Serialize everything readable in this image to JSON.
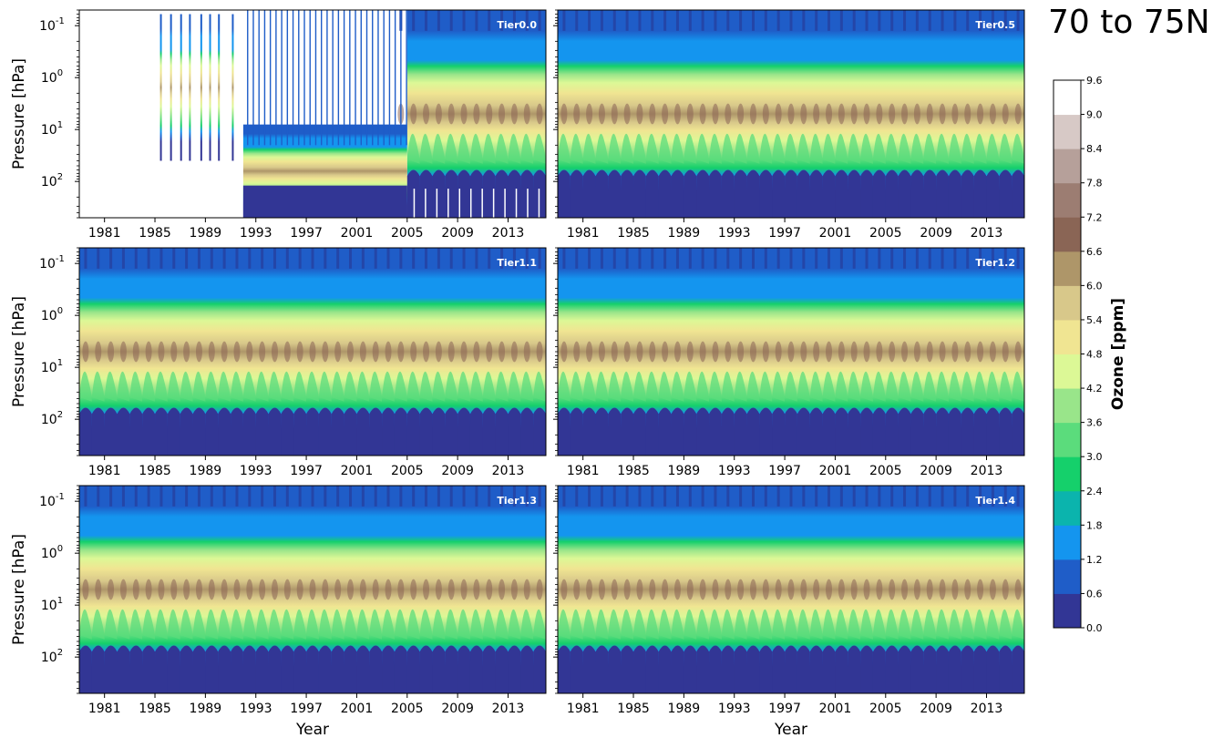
{
  "figure": {
    "title": "70 to 75N"
  },
  "colorbar": {
    "label": "Ozone [ppm]",
    "ticks": [
      "0.0",
      "0.6",
      "1.2",
      "1.8",
      "2.4",
      "3.0",
      "3.6",
      "4.2",
      "4.8",
      "5.4",
      "6.0",
      "6.6",
      "7.2",
      "7.8",
      "8.4",
      "9.0",
      "9.6"
    ],
    "colors": [
      "#323695",
      "#1f5dc8",
      "#1495ef",
      "#0bb4ad",
      "#15d06b",
      "#5bdc7c",
      "#99e58a",
      "#dcf896",
      "#f0e592",
      "#d8c88a",
      "#ae9669",
      "#8a6555",
      "#9c7d72",
      "#b6a09a",
      "#d7c9c6",
      "#ffffff"
    ]
  },
  "chart_data": [
    {
      "type": "heatmap",
      "panel_label": "Tier0.0",
      "ylabel": "Pressure [hPa]",
      "xlabel": "",
      "x_ticks": [
        "1981",
        "1985",
        "1989",
        "1993",
        "1997",
        "2001",
        "2005",
        "2009",
        "2013"
      ],
      "y_ticks": [
        "10^-1",
        "10^0",
        "10^1",
        "10^2"
      ],
      "y_scale": "log",
      "y_inverted": true,
      "x_range": [
        1979,
        2016
      ],
      "y_range": [
        0.05,
        500
      ],
      "value_range": [
        0,
        9.6
      ],
      "coverage": "sparse profiles 1985-1992, partial 1992-2005, complete 2005-2016"
    },
    {
      "type": "heatmap",
      "panel_label": "Tier0.5",
      "ylabel": "",
      "xlabel": "",
      "x_ticks": [
        "1981",
        "1985",
        "1989",
        "1993",
        "1997",
        "2001",
        "2005",
        "2009",
        "2013"
      ],
      "y_scale": "log",
      "y_inverted": true,
      "x_range": [
        1979,
        2016
      ],
      "y_range": [
        0.05,
        500
      ],
      "value_range": [
        0,
        9.6
      ]
    },
    {
      "type": "heatmap",
      "panel_label": "Tier1.1",
      "ylabel": "Pressure [hPa]",
      "xlabel": "",
      "x_ticks": [
        "1981",
        "1985",
        "1989",
        "1993",
        "1997",
        "2001",
        "2005",
        "2009",
        "2013"
      ],
      "y_ticks": [
        "10^-1",
        "10^0",
        "10^1",
        "10^2"
      ],
      "y_scale": "log",
      "y_inverted": true,
      "x_range": [
        1979,
        2016
      ],
      "y_range": [
        0.05,
        500
      ],
      "value_range": [
        0,
        9.6
      ]
    },
    {
      "type": "heatmap",
      "panel_label": "Tier1.2",
      "ylabel": "",
      "xlabel": "",
      "x_ticks": [
        "1981",
        "1985",
        "1989",
        "1993",
        "1997",
        "2001",
        "2005",
        "2009",
        "2013"
      ],
      "y_scale": "log",
      "y_inverted": true,
      "x_range": [
        1979,
        2016
      ],
      "y_range": [
        0.05,
        500
      ],
      "value_range": [
        0,
        9.6
      ]
    },
    {
      "type": "heatmap",
      "panel_label": "Tier1.3",
      "ylabel": "Pressure [hPa]",
      "xlabel": "Year",
      "x_ticks": [
        "1981",
        "1985",
        "1989",
        "1993",
        "1997",
        "2001",
        "2005",
        "2009",
        "2013"
      ],
      "y_ticks": [
        "10^-1",
        "10^0",
        "10^1",
        "10^2"
      ],
      "y_scale": "log",
      "y_inverted": true,
      "x_range": [
        1979,
        2016
      ],
      "y_range": [
        0.05,
        500
      ],
      "value_range": [
        0,
        9.6
      ]
    },
    {
      "type": "heatmap",
      "panel_label": "Tier1.4",
      "ylabel": "",
      "xlabel": "Year",
      "x_ticks": [
        "1981",
        "1985",
        "1989",
        "1993",
        "1997",
        "2001",
        "2005",
        "2009",
        "2013"
      ],
      "y_scale": "log",
      "y_inverted": true,
      "x_range": [
        1979,
        2016
      ],
      "y_range": [
        0.05,
        500
      ],
      "value_range": [
        0,
        9.6
      ]
    }
  ]
}
